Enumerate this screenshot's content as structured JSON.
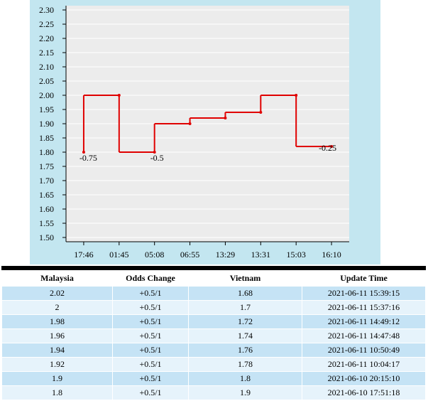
{
  "chart_data": {
    "type": "step-line",
    "categories": [
      "17:46",
      "01:45",
      "05:08",
      "06:55",
      "13:29",
      "13:31",
      "15:03",
      "16:10"
    ],
    "values": [
      1.8,
      2.0,
      1.8,
      1.9,
      1.92,
      1.94,
      2.0,
      1.82
    ],
    "color": "#e00000",
    "annotations": [
      {
        "x": "17:46",
        "text": "-0.75"
      },
      {
        "x": "05:08",
        "text": "-0.5"
      },
      {
        "x": "16:10",
        "text": "-0.25"
      }
    ],
    "ylim": [
      1.5,
      2.3
    ],
    "yticks": [
      {
        "value": 1.5,
        "label": "1.50"
      },
      1.55,
      {
        "value": 1.6,
        "label": "1.60"
      },
      1.65,
      {
        "value": 1.7,
        "label": "1.70"
      },
      1.75,
      {
        "value": 1.8,
        "label": "1.80"
      },
      1.85,
      {
        "value": 1.9,
        "label": "1.90"
      },
      1.95,
      {
        "value": 2.0,
        "label": "2.00"
      },
      2.05,
      {
        "value": 2.1,
        "label": "2.10"
      },
      2.15,
      {
        "value": 2.2,
        "label": "2.20"
      },
      2.25,
      {
        "value": 2.3,
        "label": "2.30"
      }
    ],
    "grid": true
  },
  "table": {
    "header": [
      "Malaysia",
      "Odds Change",
      "Vietnam",
      "Update Time"
    ],
    "rows": [
      [
        2.02,
        "+0.5/1",
        1.68,
        "2021-06-11 15:39:15"
      ],
      [
        2,
        "+0.5/1",
        1.7,
        "2021-06-11 15:37:16"
      ],
      [
        1.98,
        "+0.5/1",
        1.72,
        "2021-06-11 14:49:12"
      ],
      [
        1.96,
        "+0.5/1",
        1.74,
        "2021-06-11 14:47:48"
      ],
      [
        1.94,
        "+0.5/1",
        1.76,
        "2021-06-11 10:50:49"
      ],
      [
        1.92,
        "+0.5/1",
        1.78,
        "2021-06-11 10:04:17"
      ],
      [
        1.9,
        "+0.5/1",
        1.8,
        "2021-06-10 20:15:10"
      ],
      [
        1.8,
        "+0.5/1",
        1.9,
        "2021-06-10 17:51:18"
      ]
    ]
  }
}
